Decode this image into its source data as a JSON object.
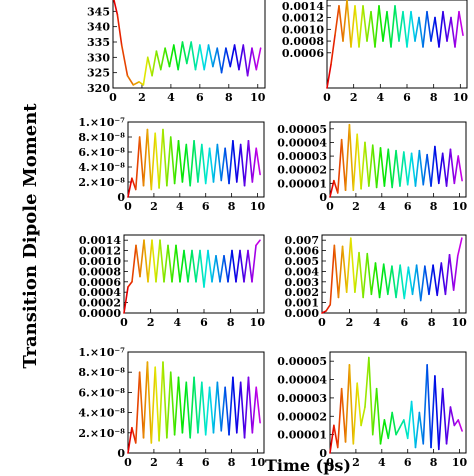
{
  "figure": {
    "ylabel": "Transition Dipole Moment",
    "xlabel": "Time (ps)"
  },
  "chart_data": [
    {
      "type": "line",
      "panel": "row1-left",
      "xlim": [
        0,
        10.5
      ],
      "ylim": [
        320,
        350
      ],
      "xticks": [
        0,
        2,
        4,
        6,
        8,
        10
      ],
      "xtick_labels": [
        "0",
        "2",
        "4",
        "6",
        "8",
        "10"
      ],
      "yticks": [
        320,
        325,
        330,
        335,
        340,
        345
      ],
      "ytick_labels": [
        "320",
        "325",
        "330",
        "335",
        "340",
        "345"
      ],
      "color_encoding": "rainbow hue by time",
      "series": [
        {
          "x": [
            0,
            0.3,
            0.6,
            1,
            1.4,
            1.8,
            2.1,
            2.4,
            2.7,
            3,
            3.3,
            3.6,
            3.9,
            4.2,
            4.5,
            4.8,
            5.1,
            5.4,
            5.7,
            6,
            6.3,
            6.6,
            6.9,
            7.2,
            7.5,
            7.8,
            8.1,
            8.4,
            8.7,
            9,
            9.3,
            9.6,
            9.9,
            10.2
          ],
          "y": [
            350,
            344,
            334,
            324,
            321,
            322,
            321,
            330,
            324,
            332,
            326,
            333,
            327,
            334,
            326,
            335,
            328,
            335,
            326,
            334,
            326,
            334,
            327,
            333,
            325,
            333,
            327,
            334,
            326,
            334,
            324,
            333,
            326,
            333
          ]
        }
      ]
    },
    {
      "type": "line",
      "panel": "row1-right",
      "xlim": [
        0,
        10.5
      ],
      "ylim": [
        0,
        0.0015
      ],
      "xticks": [
        0,
        2,
        4,
        6,
        8,
        10
      ],
      "xtick_labels": [
        "0",
        "2",
        "4",
        "6",
        "8",
        "10"
      ],
      "yticks": [
        0.0006,
        0.0008,
        0.001,
        0.0012,
        0.0014
      ],
      "ytick_labels": [
        "0.0006",
        "0.0008",
        "0.0010",
        "0.0012",
        "0.0014"
      ],
      "color_encoding": "rainbow hue by time",
      "series": [
        {
          "x": [
            0,
            0.3,
            0.6,
            0.9,
            1.2,
            1.5,
            1.8,
            2.1,
            2.4,
            2.7,
            3,
            3.3,
            3.6,
            3.9,
            4.2,
            4.5,
            4.8,
            5.1,
            5.4,
            5.7,
            6,
            6.3,
            6.6,
            6.9,
            7.2,
            7.5,
            7.8,
            8.1,
            8.4,
            8.7,
            9,
            9.3,
            9.6,
            9.9,
            10.2
          ],
          "y": [
            0,
            0.0004,
            0.0009,
            0.0014,
            0.0008,
            0.0015,
            0.0007,
            0.0014,
            0.0007,
            0.0014,
            0.0008,
            0.0013,
            0.0007,
            0.0014,
            0.0008,
            0.0013,
            0.0007,
            0.0014,
            0.0008,
            0.0013,
            0.0007,
            0.0013,
            0.0008,
            0.0012,
            0.0007,
            0.0013,
            0.0008,
            0.0012,
            0.0007,
            0.0013,
            0.0008,
            0.0012,
            0.0007,
            0.0013,
            0.0009
          ]
        }
      ]
    },
    {
      "type": "line",
      "panel": "row2-left",
      "xlim": [
        0,
        10.5
      ],
      "ylim": [
        0,
        1e-07
      ],
      "xticks": [
        0,
        2,
        4,
        6,
        8,
        10
      ],
      "xtick_labels": [
        "0",
        "2",
        "4",
        "6",
        "8",
        "10"
      ],
      "yticks": [
        0,
        2e-08,
        4e-08,
        6e-08,
        8e-08,
        1e-07
      ],
      "ytick_labels": [
        "0",
        "2.×10⁻⁸",
        "4.×10⁻⁸",
        "6.×10⁻⁸",
        "8.×10⁻⁸",
        "1.×10⁻⁷"
      ],
      "color_encoding": "rainbow hue by time",
      "series": [
        {
          "x": [
            0,
            0.3,
            0.6,
            0.9,
            1.2,
            1.5,
            1.8,
            2.1,
            2.4,
            2.7,
            3,
            3.3,
            3.6,
            3.9,
            4.2,
            4.5,
            4.8,
            5.1,
            5.4,
            5.7,
            6,
            6.3,
            6.6,
            6.9,
            7.2,
            7.5,
            7.8,
            8.1,
            8.4,
            8.7,
            9,
            9.3,
            9.6,
            9.9,
            10.2
          ],
          "y": [
            0,
            2.5e-08,
            1e-08,
            8e-08,
            1.5e-08,
            9e-08,
            1e-08,
            8.5e-08,
            1.2e-08,
            9e-08,
            1.5e-08,
            8e-08,
            1.8e-08,
            7.5e-08,
            2e-08,
            7e-08,
            1.5e-08,
            7.5e-08,
            2e-08,
            7e-08,
            1.8e-08,
            6.5e-08,
            2e-08,
            7e-08,
            2.2e-08,
            6.5e-08,
            1.8e-08,
            7.5e-08,
            2e-08,
            7e-08,
            1.5e-08,
            7.5e-08,
            2e-08,
            6.5e-08,
            3e-08
          ]
        }
      ]
    },
    {
      "type": "line",
      "panel": "row2-right",
      "xlim": [
        0,
        10.5
      ],
      "ylim": [
        0,
        5.5e-05
      ],
      "xticks": [
        0,
        2,
        4,
        6,
        8,
        10
      ],
      "xtick_labels": [
        "0",
        "2",
        "4",
        "6",
        "8",
        "10"
      ],
      "yticks": [
        0,
        1e-05,
        2e-05,
        3e-05,
        4e-05,
        5e-05
      ],
      "ytick_labels": [
        "0",
        "0.00001",
        "0.00002",
        "0.00003",
        "0.00004",
        "0.00005"
      ],
      "color_encoding": "rainbow hue by time",
      "series": [
        {
          "x": [
            0,
            0.3,
            0.6,
            0.9,
            1.2,
            1.5,
            1.8,
            2.1,
            2.4,
            2.7,
            3,
            3.3,
            3.6,
            3.9,
            4.2,
            4.5,
            4.8,
            5.1,
            5.4,
            5.7,
            6,
            6.3,
            6.6,
            6.9,
            7.2,
            7.5,
            7.8,
            8.1,
            8.4,
            8.7,
            9,
            9.3,
            9.6,
            9.9,
            10.2
          ],
          "y": [
            0,
            1.2e-05,
            3e-06,
            4.2e-05,
            5e-06,
            5.3e-05,
            5e-06,
            4.6e-05,
            6e-06,
            4e-05,
            8e-06,
            3.8e-05,
            7e-06,
            3.6e-05,
            8e-06,
            3.5e-05,
            7e-06,
            3.4e-05,
            8e-06,
            3.3e-05,
            9e-06,
            3.2e-05,
            8e-06,
            3.4e-05,
            9e-06,
            3.1e-05,
            8e-06,
            3.7e-05,
            1e-05,
            3.2e-05,
            8e-06,
            3.5e-05,
            1e-05,
            3e-05,
            1.2e-05
          ]
        }
      ]
    },
    {
      "type": "line",
      "panel": "row3-left",
      "xlim": [
        0,
        10.5
      ],
      "ylim": [
        0,
        0.0015
      ],
      "xticks": [
        0,
        2,
        4,
        6,
        8,
        10
      ],
      "xtick_labels": [
        "0",
        "2",
        "4",
        "6",
        "8",
        "10"
      ],
      "yticks": [
        0,
        0.0002,
        0.0004,
        0.0006,
        0.0008,
        0.001,
        0.0012,
        0.0014
      ],
      "ytick_labels": [
        "0.0000",
        "0.0002",
        "0.0004",
        "0.0006",
        "0.0008",
        "0.0010",
        "0.0012",
        "0.0014"
      ],
      "color_encoding": "rainbow hue by time",
      "series": [
        {
          "x": [
            0,
            0.3,
            0.6,
            0.9,
            1.2,
            1.5,
            1.8,
            2.1,
            2.4,
            2.7,
            3,
            3.3,
            3.6,
            3.9,
            4.2,
            4.5,
            4.8,
            5.1,
            5.4,
            5.7,
            6,
            6.3,
            6.6,
            6.9,
            7.2,
            7.5,
            7.8,
            8.1,
            8.4,
            8.7,
            9,
            9.3,
            9.6,
            9.9,
            10.2
          ],
          "y": [
            0,
            0.0005,
            0.0006,
            0.0013,
            0.0007,
            0.0014,
            0.0006,
            0.0014,
            0.0006,
            0.0014,
            0.0006,
            0.0013,
            0.0006,
            0.0013,
            0.0006,
            0.0012,
            0.0006,
            0.0012,
            0.0006,
            0.0012,
            0.0005,
            0.0012,
            0.0006,
            0.0011,
            0.0006,
            0.0011,
            0.0006,
            0.0012,
            0.0006,
            0.0012,
            0.0006,
            0.0012,
            0.0006,
            0.0013,
            0.0014
          ]
        }
      ]
    },
    {
      "type": "line",
      "panel": "row3-right",
      "xlim": [
        0,
        10.5
      ],
      "ylim": [
        0,
        0.0075
      ],
      "xticks": [
        0,
        2,
        4,
        6,
        8,
        10
      ],
      "xtick_labels": [
        "0",
        "2",
        "4",
        "6",
        "8",
        "10"
      ],
      "yticks": [
        0,
        0.001,
        0.002,
        0.003,
        0.004,
        0.005,
        0.006,
        0.007
      ],
      "ytick_labels": [
        "0.000",
        "0.001",
        "0.002",
        "0.003",
        "0.004",
        "0.005",
        "0.006",
        "0.007"
      ],
      "color_encoding": "rainbow hue by time",
      "series": [
        {
          "x": [
            0,
            0.3,
            0.6,
            0.9,
            1.2,
            1.5,
            1.8,
            2.1,
            2.4,
            2.7,
            3,
            3.3,
            3.6,
            3.9,
            4.2,
            4.5,
            4.8,
            5.1,
            5.4,
            5.7,
            6,
            6.3,
            6.6,
            6.9,
            7.2,
            7.5,
            7.8,
            8.1,
            8.4,
            8.7,
            9,
            9.3,
            9.6,
            9.9,
            10.2
          ],
          "y": [
            0,
            0.0002,
            0.0008,
            0.0065,
            0.0015,
            0.0064,
            0.002,
            0.0072,
            0.002,
            0.0058,
            0.0015,
            0.0057,
            0.0018,
            0.0048,
            0.0015,
            0.0047,
            0.0018,
            0.0045,
            0.0015,
            0.0046,
            0.0014,
            0.0044,
            0.0018,
            0.0046,
            0.0012,
            0.0045,
            0.0018,
            0.0046,
            0.0017,
            0.0048,
            0.0018,
            0.0056,
            0.0022,
            0.0055,
            0.0072
          ]
        }
      ]
    },
    {
      "type": "line",
      "panel": "row4-left",
      "xlim": [
        0,
        10.5
      ],
      "ylim": [
        0,
        1e-07
      ],
      "xticks": [
        0,
        2,
        4,
        6,
        8,
        10
      ],
      "xtick_labels": [
        "0",
        "2",
        "4",
        "6",
        "8",
        "10"
      ],
      "yticks": [
        0,
        2e-08,
        4e-08,
        6e-08,
        8e-08,
        1e-07
      ],
      "ytick_labels": [
        "0",
        "2.×10⁻⁸",
        "4.×10⁻⁸",
        "6.×10⁻⁸",
        "8.×10⁻⁸",
        "1.×10⁻⁷"
      ],
      "color_encoding": "rainbow hue by time",
      "series": [
        {
          "x": [
            0,
            0.3,
            0.6,
            0.9,
            1.2,
            1.5,
            1.8,
            2.1,
            2.4,
            2.7,
            3,
            3.3,
            3.6,
            3.9,
            4.2,
            4.5,
            4.8,
            5.1,
            5.4,
            5.7,
            6,
            6.3,
            6.6,
            6.9,
            7.2,
            7.5,
            7.8,
            8.1,
            8.4,
            8.7,
            9,
            9.3,
            9.6,
            9.9,
            10.2
          ],
          "y": [
            0,
            2.5e-08,
            1e-08,
            8e-08,
            1.5e-08,
            9e-08,
            1e-08,
            8.5e-08,
            1.2e-08,
            9e-08,
            1.5e-08,
            8e-08,
            1.8e-08,
            7.5e-08,
            2e-08,
            7e-08,
            1.5e-08,
            7.5e-08,
            2e-08,
            7e-08,
            1.8e-08,
            6.5e-08,
            2e-08,
            7e-08,
            2.2e-08,
            6.5e-08,
            1.8e-08,
            7.5e-08,
            2e-08,
            7e-08,
            1.5e-08,
            7.5e-08,
            2e-08,
            6.5e-08,
            3e-08
          ]
        }
      ]
    },
    {
      "type": "line",
      "panel": "row4-right",
      "xlim": [
        0,
        10.5
      ],
      "ylim": [
        0,
        5.5e-05
      ],
      "xticks": [
        0,
        2,
        4,
        6,
        8,
        10
      ],
      "xtick_labels": [
        "0",
        "2",
        "4",
        "6",
        "8",
        "10"
      ],
      "yticks": [
        0,
        1e-05,
        2e-05,
        3e-05,
        4e-05,
        5e-05
      ],
      "ytick_labels": [
        "0",
        "0.00001",
        "0.00002",
        "0.00003",
        "0.00004",
        "0.00005"
      ],
      "color_encoding": "rainbow hue by time",
      "series": [
        {
          "x": [
            0,
            0.3,
            0.6,
            0.9,
            1.2,
            1.5,
            1.8,
            2.1,
            2.4,
            2.7,
            3,
            3.3,
            3.6,
            3.9,
            4.2,
            4.5,
            4.8,
            5.1,
            5.4,
            5.7,
            6,
            6.3,
            6.6,
            6.9,
            7.2,
            7.5,
            7.8,
            8.1,
            8.4,
            8.7,
            9,
            9.3,
            9.6,
            9.9,
            10.2
          ],
          "y": [
            0,
            1.5e-05,
            3e-06,
            3.5e-05,
            6e-06,
            4.8e-05,
            5e-06,
            3.8e-05,
            1.5e-05,
            2.5e-05,
            5.2e-05,
            1e-05,
            3.5e-05,
            5e-06,
            1.8e-05,
            8e-06,
            2.2e-05,
            1e-05,
            1.4e-05,
            1.8e-05,
            8e-06,
            2.8e-05,
            3e-06,
            2.2e-05,
            5e-06,
            4.8e-05,
            3e-06,
            4.2e-05,
            2e-06,
            3.5e-05,
            5e-06,
            2.5e-05,
            1.5e-05,
            1.8e-05,
            1.2e-05
          ]
        }
      ]
    }
  ]
}
